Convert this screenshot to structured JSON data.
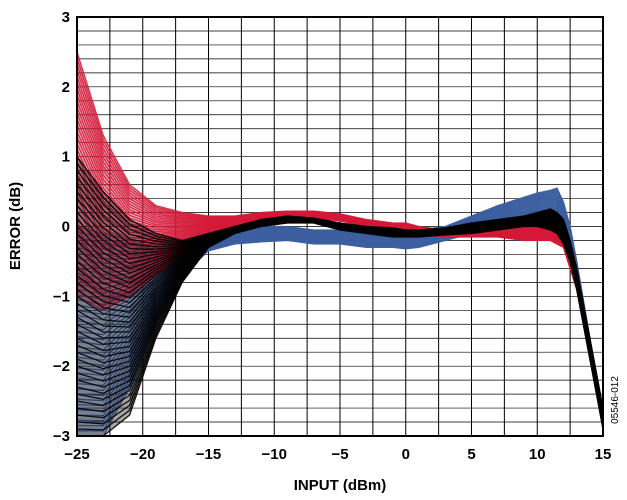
{
  "chart_data": {
    "type": "line",
    "title": "",
    "xlabel": "INPUT (dBm)",
    "ylabel": "ERROR (dB)",
    "xlim": [
      -25,
      15
    ],
    "ylim": [
      -3,
      3
    ],
    "x_ticks": [
      -25,
      -20,
      -15,
      -10,
      -5,
      0,
      5,
      10,
      15
    ],
    "x_tick_labels": [
      "−25",
      "−20",
      "−15",
      "−10",
      "−5",
      "0",
      "5",
      "10",
      "15"
    ],
    "y_ticks": [
      -3,
      -2,
      -1,
      0,
      1,
      2,
      3
    ],
    "y_tick_labels": [
      "−3",
      "−2",
      "−1",
      "0",
      "1",
      "2",
      "3"
    ],
    "grid": true,
    "legend": "none",
    "figure_id": "05546-012",
    "series": [
      {
        "color": "#3c5fa0",
        "x": [
          -25,
          -23,
          -21,
          -19,
          -17,
          -15,
          -13,
          -11,
          -9,
          -7,
          -5,
          -3,
          -1,
          0,
          1,
          3,
          5,
          7,
          9,
          10,
          11,
          11.5,
          12,
          12.5,
          13,
          14,
          15
        ],
        "upper": [
          0.0,
          -0.1,
          -0.2,
          -0.3,
          -0.25,
          -0.1,
          0.0,
          0.0,
          0.0,
          -0.05,
          -0.05,
          -0.05,
          -0.05,
          -0.05,
          -0.05,
          0.0,
          0.15,
          0.3,
          0.42,
          0.48,
          0.52,
          0.55,
          0.35,
          0.0,
          -0.5,
          -1.6,
          -2.7
        ],
        "lower": [
          -3.0,
          -3.0,
          -2.3,
          -1.4,
          -0.7,
          -0.35,
          -0.25,
          -0.22,
          -0.2,
          -0.25,
          -0.25,
          -0.3,
          -0.3,
          -0.32,
          -0.3,
          -0.2,
          -0.1,
          0.0,
          0.05,
          0.1,
          0.1,
          0.05,
          -0.1,
          -0.3,
          -0.7,
          -1.8,
          -2.9
        ]
      },
      {
        "color": "#d41939",
        "x": [
          -25,
          -23,
          -21,
          -19,
          -17,
          -15,
          -13,
          -11,
          -9,
          -7,
          -5,
          -3,
          -1,
          0,
          1,
          3,
          5,
          7,
          9,
          10,
          11,
          11.5,
          12,
          12.5,
          13,
          14,
          15
        ],
        "upper": [
          2.5,
          1.3,
          0.6,
          0.3,
          0.2,
          0.15,
          0.15,
          0.2,
          0.22,
          0.22,
          0.18,
          0.1,
          0.05,
          0.05,
          0.0,
          -0.05,
          -0.05,
          -0.05,
          0.0,
          0.0,
          0.0,
          -0.05,
          -0.1,
          -0.3,
          -0.7,
          -1.7,
          -2.6
        ],
        "lower": [
          -1.0,
          -1.2,
          -1.0,
          -0.7,
          -0.45,
          -0.2,
          -0.05,
          0.05,
          0.1,
          0.12,
          0.08,
          0.0,
          -0.05,
          -0.1,
          -0.12,
          -0.15,
          -0.15,
          -0.15,
          -0.2,
          -0.2,
          -0.2,
          -0.25,
          -0.3,
          -0.6,
          -0.9,
          -1.9,
          -2.8
        ]
      },
      {
        "color": "#000000",
        "x": [
          -25,
          -23,
          -21,
          -19,
          -17,
          -15,
          -13,
          -11,
          -9,
          -7,
          -5,
          -3,
          -1,
          0,
          1,
          3,
          5,
          7,
          9,
          10,
          11,
          11.5,
          12,
          12.5,
          13,
          14,
          15
        ],
        "upper": [
          1.0,
          0.5,
          0.1,
          -0.1,
          -0.2,
          -0.1,
          0.0,
          0.1,
          0.15,
          0.12,
          0.05,
          0.0,
          -0.02,
          -0.05,
          -0.05,
          -0.02,
          0.05,
          0.1,
          0.15,
          0.2,
          0.25,
          0.2,
          0.1,
          -0.2,
          -0.6,
          -1.6,
          -2.6
        ],
        "lower": [
          -3.0,
          -3.0,
          -2.7,
          -1.6,
          -0.8,
          -0.3,
          -0.1,
          0.0,
          0.05,
          0.05,
          -0.05,
          -0.1,
          -0.15,
          -0.15,
          -0.15,
          -0.12,
          -0.1,
          -0.05,
          0.0,
          0.0,
          -0.05,
          -0.1,
          -0.25,
          -0.5,
          -0.9,
          -1.9,
          -2.9
        ]
      }
    ]
  }
}
